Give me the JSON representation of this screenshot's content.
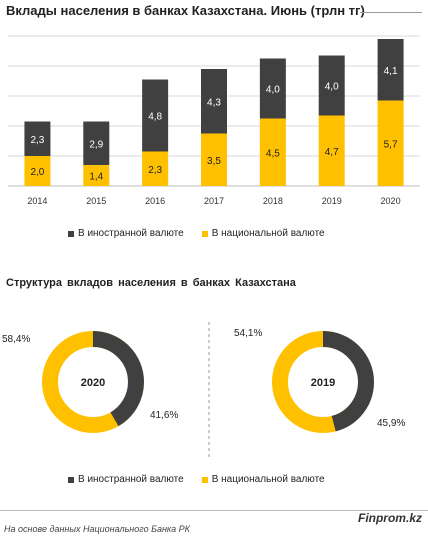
{
  "title": "Вклады населения в банках Казахстана. Июнь (трлн тг)",
  "subtitle": "Структура  вкладов  населения  в  банках  Казахстана",
  "source": "На основе данных  Национального  Банка РК",
  "brand": "Finprom.kz",
  "colors": {
    "foreign": "#404040",
    "national": "#ffc000",
    "grid": "#d9d9d9"
  },
  "legend": {
    "foreign": "В иностранной валюте",
    "national": "В национальной валюте"
  },
  "chart_data": [
    {
      "type": "bar",
      "stacked": true,
      "categories": [
        "2014",
        "2015",
        "2016",
        "2017",
        "2018",
        "2019",
        "2020"
      ],
      "series": [
        {
          "name": "В национальной валюте",
          "key": "national",
          "values": [
            2.0,
            1.4,
            2.3,
            3.5,
            4.5,
            4.7,
            5.7
          ],
          "labels": [
            "2,0",
            "1,4",
            "2,3",
            "3,5",
            "4,5",
            "4,7",
            "5,7"
          ]
        },
        {
          "name": "В иностранной валюте",
          "key": "foreign",
          "values": [
            2.3,
            2.9,
            4.8,
            4.3,
            4.0,
            4.0,
            4.1
          ],
          "labels": [
            "2,3",
            "2,9",
            "4,8",
            "4,3",
            "4,0",
            "4,0",
            "4,1"
          ]
        }
      ],
      "ylim": [
        0,
        10
      ],
      "grid": true,
      "legend_position": "bottom"
    },
    {
      "type": "pie",
      "donut": true,
      "center_label": "2020",
      "slices": [
        {
          "name": "В иностранной валюте",
          "key": "foreign",
          "value": 41.6,
          "label": "41,6%"
        },
        {
          "name": "В национальной валюте",
          "key": "national",
          "value": 58.4,
          "label": "58,4%"
        }
      ]
    },
    {
      "type": "pie",
      "donut": true,
      "center_label": "2019",
      "slices": [
        {
          "name": "В иностранной валюте",
          "key": "foreign",
          "value": 45.9,
          "label": "45,9%"
        },
        {
          "name": "В национальной валюте",
          "key": "national",
          "value": 54.1,
          "label": "54,1%"
        }
      ]
    }
  ]
}
